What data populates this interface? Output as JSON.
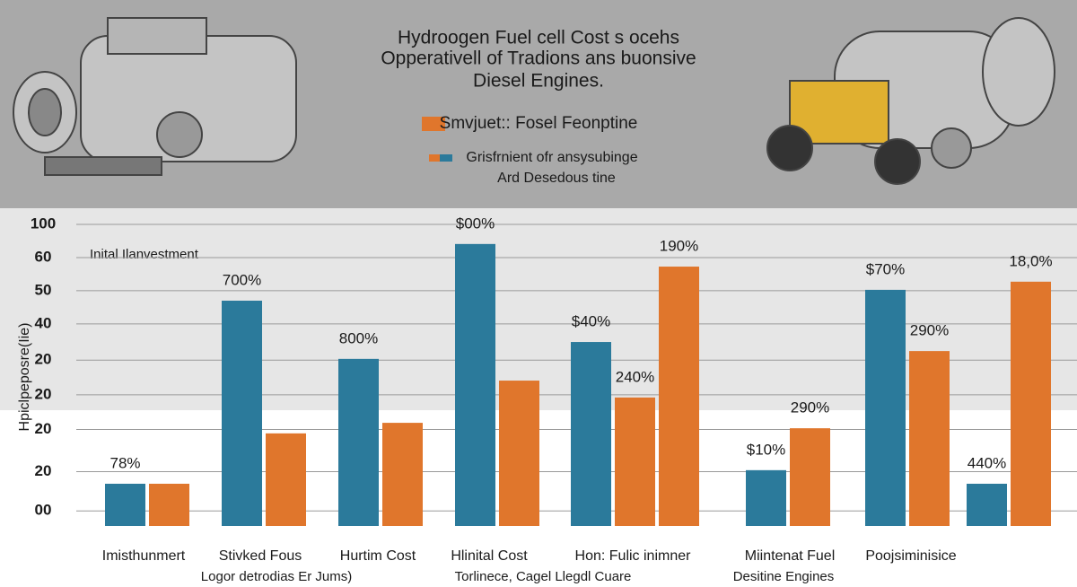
{
  "chart_data": {
    "type": "bar",
    "title": [
      "Hydroogen Fuel cell Cost s ocehs",
      "Opperativell of Tradions ans buonsive",
      "Diesel Engines."
    ],
    "legend": [
      {
        "label": "Smvjuet:: Fosel Feonptine",
        "colors": [
          "#e0762c"
        ]
      },
      {
        "label": "Grisfrnient ofr ansysubinge",
        "colors": [
          "#e0762c",
          "#2b7a9b"
        ]
      },
      {
        "label": "Ard Desedous tine",
        "colors": []
      }
    ],
    "ylabel": "Hpiclpeposre(Iie)",
    "annotation": "Inital Ilanvestment",
    "categories": [
      "Imisthunmert",
      "Stivked Fous",
      "Hurtim Cost",
      "Hlinital Cost",
      "Hon: Fulic inimner",
      "Miintenat Fuel",
      "Poojsiminisice",
      null
    ],
    "x_subtitles": [
      "Logor detrodias Er Jums)",
      "Torlinece, Cagel Llegdl Cuare",
      "Desitine Engines"
    ],
    "series": [
      {
        "color": "#2b7a9b",
        "values": [
          14,
          74.7,
          55.4,
          93.5,
          61,
          18.5,
          78.3,
          14
        ],
        "annotations": [
          "78%",
          "700%",
          "800%",
          "$00%",
          "$40%",
          "$10%",
          "$70%",
          "440%"
        ]
      },
      {
        "color": "#e0762c",
        "values": [
          14,
          30.7,
          34.2,
          48.2,
          42.6,
          32.4,
          58,
          81
        ],
        "annotations": [
          null,
          null,
          null,
          null,
          "240%",
          "290%",
          "290%",
          "18,0%"
        ]
      },
      {
        "color": "#e0762c",
        "values": [
          null,
          null,
          null,
          null,
          86,
          null,
          null,
          null
        ],
        "annotations": [
          null,
          null,
          null,
          null,
          "190%",
          null,
          null,
          null
        ]
      }
    ],
    "ylim": [
      0,
      100
    ],
    "yticks": [
      100,
      {
        "value": 89,
        "label": "60"
      },
      {
        "value": 78,
        "label": "50"
      },
      {
        "value": 67,
        "label": "40"
      },
      {
        "value": 55,
        "label": "20"
      },
      {
        "value": 43.5,
        "label": "20"
      },
      {
        "value": 32,
        "label": "20"
      },
      {
        "value": 18,
        "label": "20"
      },
      {
        "value": 5,
        "label": "00"
      }
    ],
    "grid": true
  }
}
